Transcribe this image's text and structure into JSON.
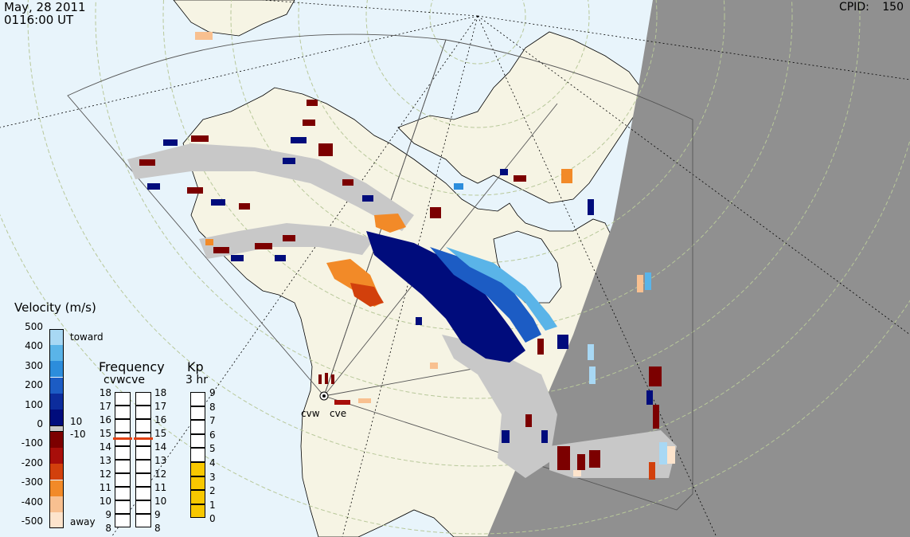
{
  "header": {
    "date": "May, 28 2011",
    "time": "0116:00 UT",
    "cpid_label": "CPID:",
    "cpid_value": "150"
  },
  "radars": [
    {
      "name": "cvw"
    },
    {
      "name": "cve"
    }
  ],
  "velocity_scale": {
    "title": "Velocity (m/s)",
    "ticks": [
      "500",
      "400",
      "300",
      "200",
      "100",
      "0",
      "-100",
      "-200",
      "-300",
      "-400",
      "-500"
    ],
    "toward_label": "toward",
    "away_label": "away",
    "ground_scatter_upper": "10",
    "ground_scatter_lower": "-10",
    "colors": [
      "#a8d8f4",
      "#5ab4e8",
      "#2c8ddc",
      "#1c5cc4",
      "#0c2c9c",
      "#000c7c",
      "#7c0000",
      "#a80e0a",
      "#d2400c",
      "#f28a28",
      "#f8c090",
      "#fde4cc"
    ],
    "ground_scatter_color": "#c8c8c8"
  },
  "frequency_panel": {
    "title": "Frequency",
    "subtitle": "cvwcve",
    "ticks_left": [
      "18",
      "17",
      "16",
      "15",
      "14",
      "13",
      "12",
      "11",
      "10",
      "9",
      "8"
    ],
    "ticks_right": [
      "18",
      "17",
      "16",
      "15",
      "14",
      "13",
      "12",
      "11",
      "10",
      "9",
      "8"
    ],
    "cvw_freq_mhz": 15,
    "cve_freq_mhz": 15,
    "marker_color": "#e04010"
  },
  "kp_panel": {
    "title": "Kp",
    "subtitle": "3 hr",
    "ticks": [
      "9",
      "8",
      "7",
      "6",
      "5",
      "4",
      "3",
      "2",
      "1",
      "0"
    ],
    "value": 4,
    "fill_color": "#f8c800"
  },
  "map_colors": {
    "ocean": "#e8f4fb",
    "land": "#f6f4e4",
    "night": "#909090",
    "grid_lat": "#b8c89a",
    "grid_lon": "#000000"
  }
}
